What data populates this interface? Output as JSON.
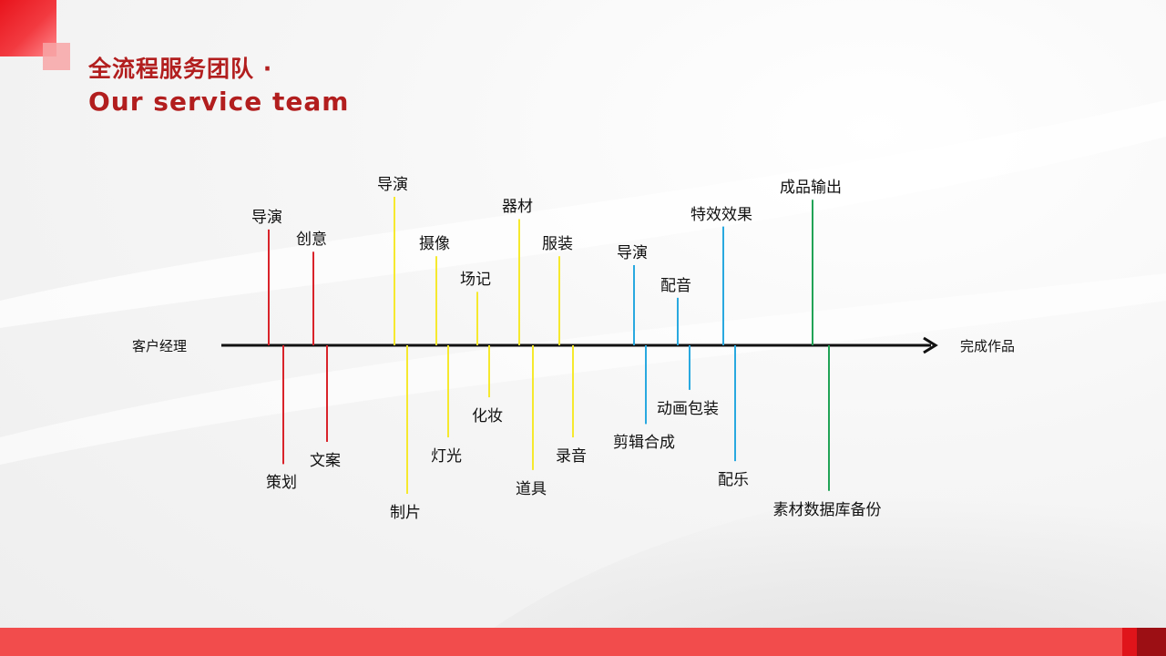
{
  "title": {
    "cn": "全流程服务团队 ·",
    "en": "Our service team"
  },
  "timeline": {
    "start_label": "客户经理",
    "end_label": "完成作品",
    "colors": {
      "account": "#d9232a",
      "production": "#f6e92e",
      "post": "#29a9e0",
      "delivery": "#21a356",
      "axis": "#111111"
    },
    "items": [
      {
        "label": "导演",
        "side": "up",
        "group": "account",
        "length": 0.78
      },
      {
        "label": "策划",
        "side": "down",
        "group": "account",
        "length": 0.8
      },
      {
        "label": "创意",
        "side": "up",
        "group": "account",
        "length": 0.63
      },
      {
        "label": "文案",
        "side": "down",
        "group": "account",
        "length": 0.65
      },
      {
        "label": "导演",
        "side": "up",
        "group": "production",
        "length": 1.0
      },
      {
        "label": "制片",
        "side": "down",
        "group": "production",
        "length": 1.0
      },
      {
        "label": "摄像",
        "side": "up",
        "group": "production",
        "length": 0.6
      },
      {
        "label": "灯光",
        "side": "down",
        "group": "production",
        "length": 0.62
      },
      {
        "label": "场记",
        "side": "up",
        "group": "production",
        "length": 0.36
      },
      {
        "label": "化妆",
        "side": "down",
        "group": "production",
        "length": 0.35
      },
      {
        "label": "器材",
        "side": "up",
        "group": "production",
        "length": 0.85
      },
      {
        "label": "道具",
        "side": "down",
        "group": "production",
        "length": 0.84
      },
      {
        "label": "服装",
        "side": "up",
        "group": "production",
        "length": 0.6
      },
      {
        "label": "录音",
        "side": "down",
        "group": "production",
        "length": 0.62
      },
      {
        "label": "导演",
        "side": "up",
        "group": "post",
        "length": 0.54
      },
      {
        "label": "剪辑合成",
        "side": "down",
        "group": "post",
        "length": 0.53
      },
      {
        "label": "配音",
        "side": "up",
        "group": "post",
        "length": 0.32
      },
      {
        "label": "动画包装",
        "side": "down",
        "group": "post",
        "length": 0.3
      },
      {
        "label": "特效效果",
        "side": "up",
        "group": "post",
        "length": 0.8
      },
      {
        "label": "配乐",
        "side": "down",
        "group": "post",
        "length": 0.78
      },
      {
        "label": "成品输出",
        "side": "up",
        "group": "delivery",
        "length": 0.98
      },
      {
        "label": "素材数据库备份",
        "side": "down",
        "group": "delivery",
        "length": 0.98
      }
    ]
  }
}
